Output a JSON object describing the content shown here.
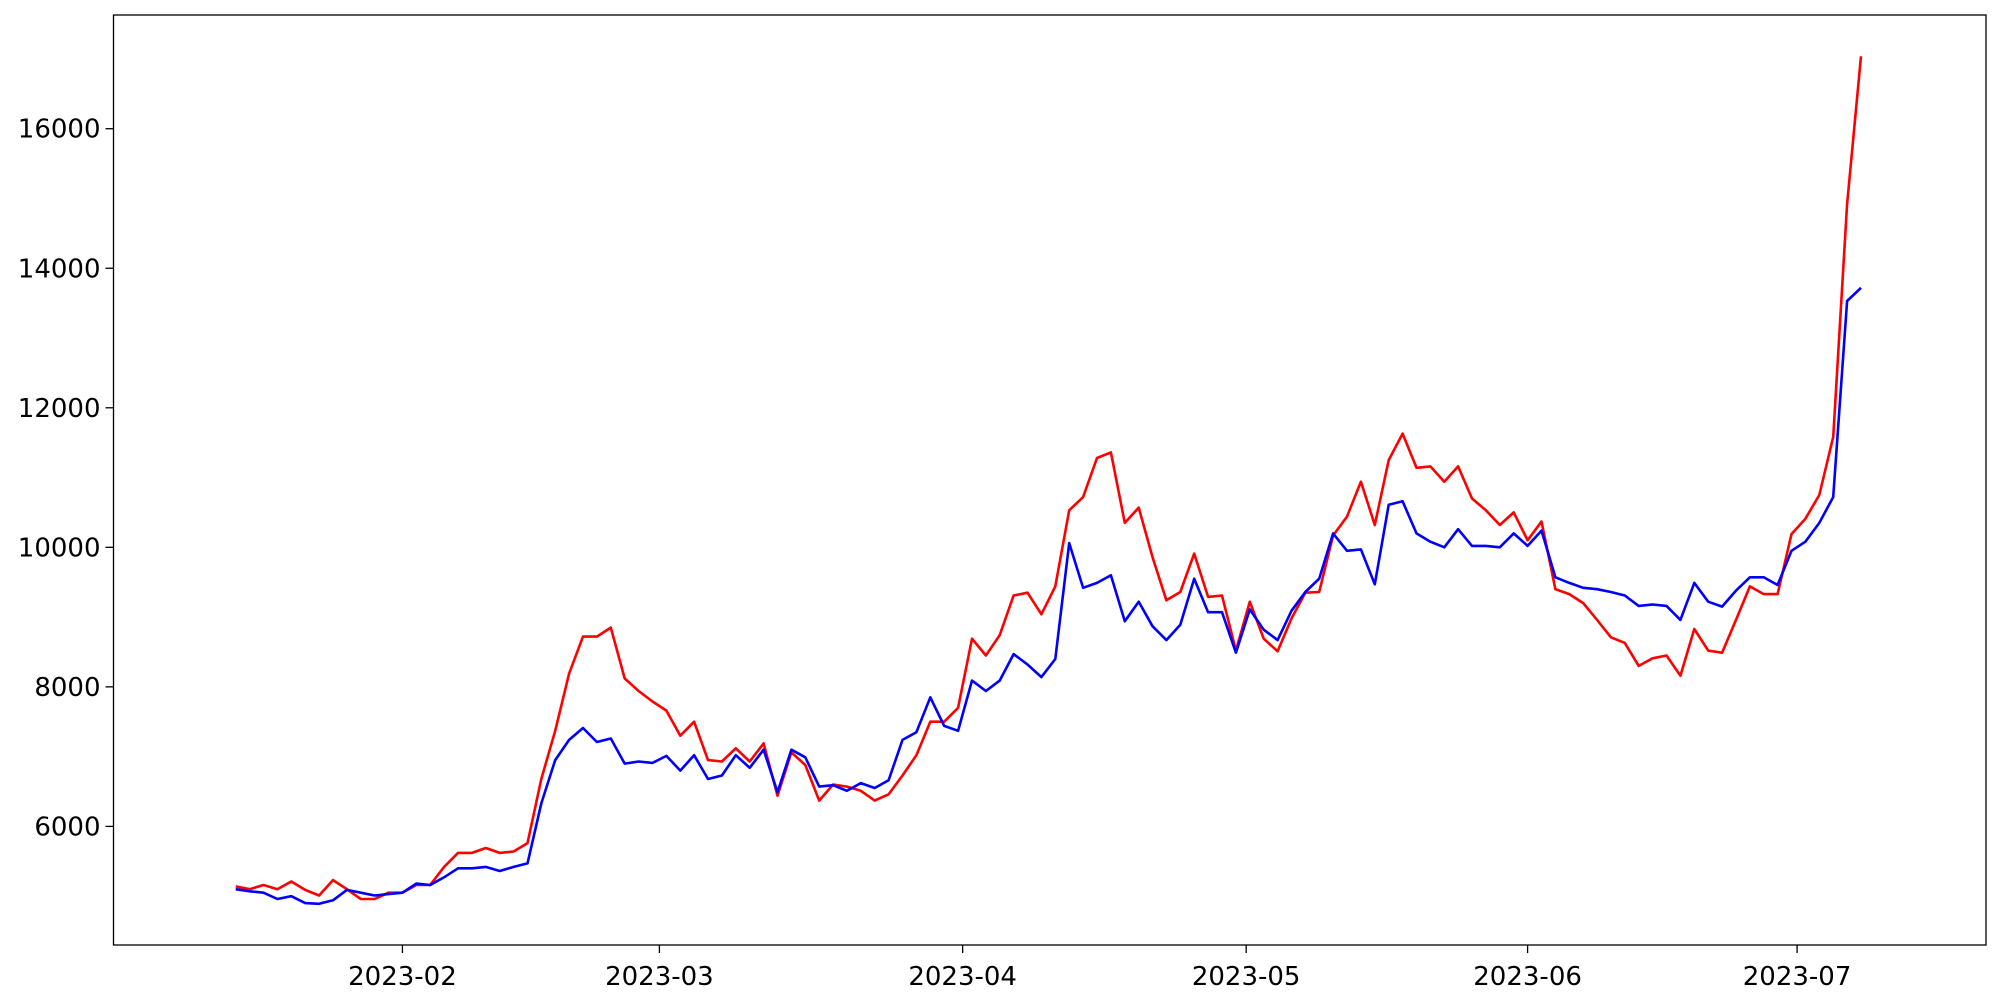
{
  "chart_data": {
    "type": "line",
    "categories": [
      null,
      null,
      null,
      null,
      null,
      null,
      null,
      null,
      null,
      null,
      null,
      null,
      null,
      null,
      null,
      null,
      null,
      null,
      null,
      null,
      null,
      null,
      null,
      null,
      null,
      null,
      null,
      null,
      null,
      null,
      null,
      null,
      null,
      null,
      null,
      null,
      null,
      null,
      null,
      null,
      null,
      null,
      null,
      null,
      null,
      null,
      null,
      null,
      null,
      null,
      null,
      null,
      null,
      null,
      null,
      null,
      null,
      null,
      null,
      null,
      null,
      null,
      null,
      null,
      null,
      null,
      null,
      null,
      null,
      null,
      null,
      null,
      null,
      null,
      null,
      null,
      null,
      null,
      null,
      null,
      null,
      null,
      null,
      null,
      null,
      null,
      null,
      null,
      null,
      null,
      null,
      null,
      null,
      null,
      null,
      null,
      null,
      null,
      null,
      null,
      null,
      null,
      null,
      null,
      null,
      null,
      null,
      null,
      null,
      null,
      null,
      null,
      null,
      null,
      null,
      null,
      null,
      null
    ],
    "series": [
      {
        "color": "#ff0000",
        "values": [
          5140,
          5100,
          5160,
          5100,
          5210,
          5090,
          5010,
          5230,
          5100,
          4960,
          4960,
          5050,
          5050,
          5160,
          5160,
          5420,
          5620,
          5620,
          5690,
          5620,
          5640,
          5760,
          6680,
          7370,
          8190,
          8720,
          8720,
          8850,
          8120,
          7940,
          7790,
          7660,
          7300,
          7500,
          6950,
          6930,
          7120,
          6930,
          7190,
          6440,
          7060,
          6880,
          6370,
          6600,
          6570,
          6510,
          6370,
          6460,
          6730,
          7020,
          7500,
          7500,
          7700,
          8690,
          8450,
          8740,
          9310,
          9350,
          9040,
          9440,
          10530,
          10720,
          11280,
          11360,
          10350,
          10570,
          9860,
          9240,
          9360,
          9910,
          9290,
          9310,
          8520,
          9220,
          8690,
          8510,
          8980,
          9350,
          9360,
          10170,
          10440,
          10940,
          10320,
          11250,
          11630,
          11140,
          11160,
          10940,
          11160,
          10700,
          10530,
          10320,
          10500,
          10100,
          10370,
          9400,
          9330,
          9200,
          8960,
          8710,
          8630,
          8300,
          8410,
          8450,
          8160,
          8830,
          8520,
          8490,
          8960,
          9440,
          9330,
          9330,
          10190,
          10410,
          10750,
          11580,
          14920,
          17040
        ]
      },
      {
        "color": "#0000ff",
        "values": [
          5100,
          5070,
          5050,
          4960,
          5000,
          4900,
          4890,
          4940,
          5090,
          5050,
          5010,
          5030,
          5050,
          5180,
          5160,
          5270,
          5400,
          5400,
          5420,
          5360,
          5420,
          5470,
          6330,
          6950,
          7240,
          7410,
          7210,
          7260,
          6900,
          6930,
          6910,
          7010,
          6800,
          7020,
          6680,
          6730,
          7020,
          6840,
          7100,
          6490,
          7100,
          6990,
          6570,
          6590,
          6510,
          6620,
          6550,
          6660,
          7240,
          7350,
          7850,
          7440,
          7370,
          8090,
          7940,
          8090,
          8470,
          8320,
          8140,
          8400,
          10060,
          9420,
          9490,
          9600,
          8940,
          9220,
          8870,
          8670,
          8890,
          9550,
          9070,
          9070,
          8490,
          9110,
          8820,
          8670,
          9090,
          9360,
          9550,
          10200,
          9950,
          9970,
          9470,
          10610,
          10660,
          10200,
          10080,
          10000,
          10260,
          10020,
          10020,
          10000,
          10200,
          10020,
          10240,
          9570,
          9490,
          9420,
          9400,
          9360,
          9310,
          9160,
          9180,
          9160,
          8960,
          9490,
          9220,
          9150,
          9380,
          9570,
          9570,
          9460,
          9950,
          10080,
          10350,
          10720,
          13530,
          13720
        ]
      }
    ],
    "xlim": [
      -8.8,
      126
    ],
    "xticks": [
      {
        "value": 12,
        "label": "2023-02"
      },
      {
        "value": 30.5,
        "label": "2023-03"
      },
      {
        "value": 52.33,
        "label": "2023-04"
      },
      {
        "value": 72.74,
        "label": "2023-05"
      },
      {
        "value": 93,
        "label": "2023-06"
      },
      {
        "value": 112.4,
        "label": "2023-07"
      }
    ],
    "ylim": [
      4300,
      17630
    ],
    "yticks": [
      6000,
      8000,
      10000,
      12000,
      14000,
      16000
    ]
  }
}
